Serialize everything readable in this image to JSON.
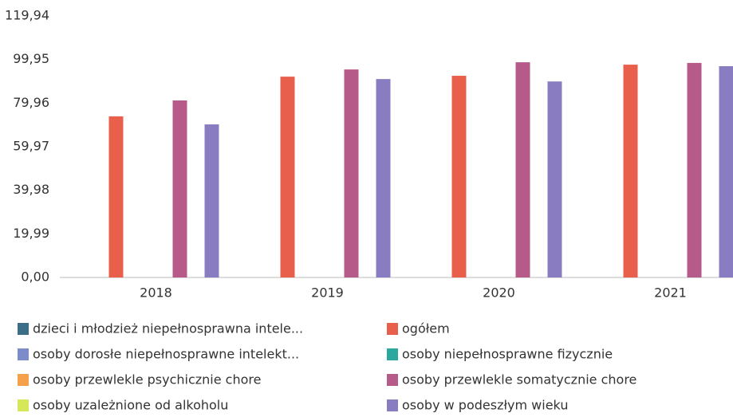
{
  "chart_data": {
    "type": "bar",
    "categories": [
      "2018",
      "2019",
      "2020",
      "2021"
    ],
    "series": [
      {
        "name": "dzieci i młodzież niepełnosprawna intele...",
        "color": "#3d6e87",
        "values": [
          null,
          null,
          null,
          null
        ]
      },
      {
        "name": "ogółem",
        "color": "#e8604c",
        "values": [
          73.9,
          92.1,
          92.5,
          97.6
        ]
      },
      {
        "name": "osoby dorosłe niepełnosprawne intelekt...",
        "color": "#7b8cc8",
        "values": [
          null,
          null,
          null,
          null
        ]
      },
      {
        "name": "osoby niepełnosprawne fizycznie",
        "color": "#2aa8a0",
        "values": [
          null,
          null,
          null,
          null
        ]
      },
      {
        "name": "osoby przewlekle psychicznie chore",
        "color": "#f5a04a",
        "values": [
          null,
          null,
          null,
          null
        ]
      },
      {
        "name": "osoby przewlekle somatycznie chore",
        "color": "#b65a8a",
        "values": [
          81.2,
          95.4,
          98.7,
          98.4
        ]
      },
      {
        "name": "osoby uzależnione od alkoholu",
        "color": "#d6e85a",
        "values": [
          null,
          null,
          null,
          null
        ]
      },
      {
        "name": "osoby w podeszłym wieku",
        "color": "#8a7cc0",
        "values": [
          70.2,
          91.0,
          89.9,
          96.9
        ]
      }
    ],
    "ylim": [
      0,
      119.94
    ],
    "yticks": [
      {
        "value": 0,
        "label": "0,00"
      },
      {
        "value": 19.99,
        "label": "19,99"
      },
      {
        "value": 39.98,
        "label": "39,98"
      },
      {
        "value": 59.97,
        "label": "59,97"
      },
      {
        "value": 79.96,
        "label": "79,96"
      },
      {
        "value": 99.95,
        "label": "99,95"
      },
      {
        "value": 119.94,
        "label": "119,94"
      }
    ],
    "grid": false
  }
}
